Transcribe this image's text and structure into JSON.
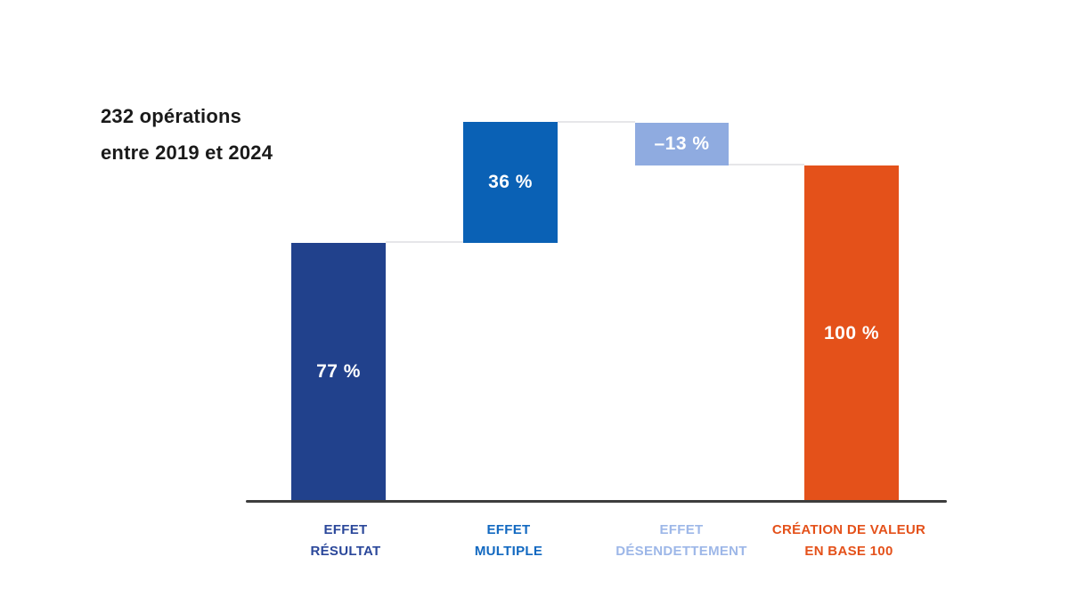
{
  "annotation": {
    "line1": "232 opérations",
    "line2": "entre 2019 et 2024"
  },
  "chart_data": {
    "type": "bar",
    "subtype": "waterfall",
    "title": "",
    "annotation": "232 opérations entre 2019 et 2024",
    "categories": [
      "EFFET RÉSULTAT",
      "EFFET MULTIPLE",
      "EFFET DÉSENDETTEMENT",
      "CRÉATION DE VALEUR EN BASE 100"
    ],
    "categories_lines": [
      [
        "EFFET",
        "RÉSULTAT"
      ],
      [
        "EFFET",
        "MULTIPLE"
      ],
      [
        "EFFET",
        "DÉSENDETTEMENT"
      ],
      [
        "CRÉATION DE VALEUR",
        "EN BASE 100"
      ]
    ],
    "values": [
      77,
      36,
      -13,
      100
    ],
    "value_labels": [
      "77 %",
      "36 %",
      "–13 %",
      "100 %"
    ],
    "segments": [
      {
        "label": "EFFET RÉSULTAT",
        "start": 0,
        "end": 77
      },
      {
        "label": "EFFET MULTIPLE",
        "start": 77,
        "end": 113
      },
      {
        "label": "EFFET DÉSENDETTEMENT",
        "start": 113,
        "end": 100
      },
      {
        "label": "CRÉATION DE VALEUR EN BASE 100",
        "start": 0,
        "end": 100
      }
    ],
    "bar_colors": [
      "#21418c",
      "#0a61b5",
      "#8fabe0",
      "#e4511a"
    ],
    "label_colors": [
      "#2a479a",
      "#1168c0",
      "#9db7e8",
      "#e4511a"
    ],
    "value_text_color": "#ffffff",
    "annotation_color": "#1a1a1a",
    "axis_line_color": "#3d3d3d",
    "connector_color": "#e6e6e9",
    "xlabel": "",
    "ylabel": "",
    "ylim": [
      0,
      113
    ],
    "grid": false,
    "legend": false
  }
}
